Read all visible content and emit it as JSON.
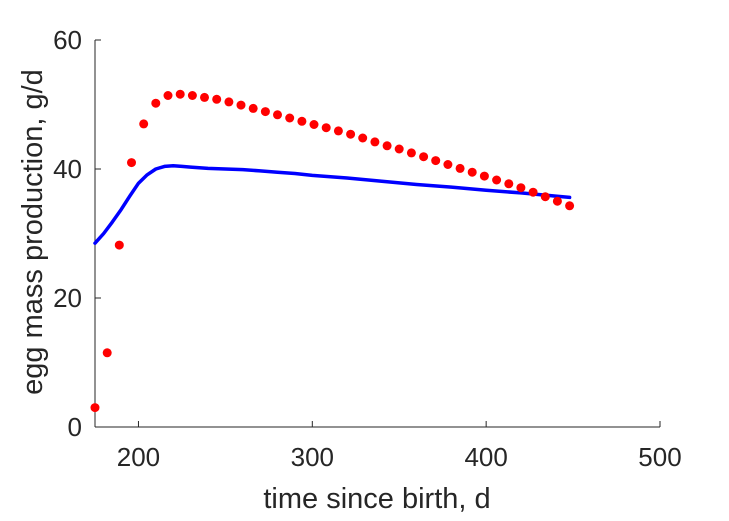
{
  "chart_data": {
    "type": "scatter",
    "title": "",
    "xlabel": "time since birth, d",
    "ylabel": "egg mass production, g/d",
    "xlim": [
      175,
      500
    ],
    "ylim": [
      0,
      60
    ],
    "xticks": [
      200,
      300,
      400,
      500
    ],
    "yticks": [
      0,
      20,
      40,
      60
    ],
    "grid": false,
    "legend": "none",
    "series": [
      {
        "kind": "scatter",
        "color": "#ff0000",
        "x": [
          175,
          182,
          189,
          196,
          203,
          210,
          217,
          224,
          231,
          238,
          245,
          252,
          259,
          266,
          273,
          280,
          287,
          294,
          301,
          308,
          315,
          322,
          329,
          336,
          343,
          350,
          357,
          364,
          371,
          378,
          385,
          392,
          399,
          406,
          413,
          420,
          427,
          434,
          441,
          448
        ],
        "y": [
          3.0,
          11.5,
          28.2,
          41.0,
          47.0,
          50.2,
          51.4,
          51.6,
          51.4,
          51.1,
          50.8,
          50.4,
          49.9,
          49.4,
          48.9,
          48.4,
          47.9,
          47.4,
          46.9,
          46.4,
          45.9,
          45.4,
          44.8,
          44.2,
          43.6,
          43.1,
          42.5,
          41.9,
          41.3,
          40.7,
          40.1,
          39.5,
          38.9,
          38.3,
          37.7,
          37.1,
          36.4,
          35.7,
          35.0,
          34.3
        ]
      },
      {
        "kind": "line",
        "color": "#0000ff",
        "x": [
          175,
          180,
          185,
          190,
          195,
          200,
          205,
          210,
          215,
          220,
          225,
          230,
          240,
          250,
          260,
          270,
          280,
          290,
          300,
          320,
          340,
          360,
          380,
          400,
          420,
          440,
          448
        ],
        "y": [
          28.5,
          30.0,
          31.8,
          33.7,
          35.8,
          37.8,
          39.1,
          40.0,
          40.4,
          40.5,
          40.4,
          40.3,
          40.1,
          40.0,
          39.9,
          39.7,
          39.5,
          39.3,
          39.0,
          38.6,
          38.1,
          37.6,
          37.2,
          36.7,
          36.3,
          35.8,
          35.6
        ]
      }
    ]
  }
}
